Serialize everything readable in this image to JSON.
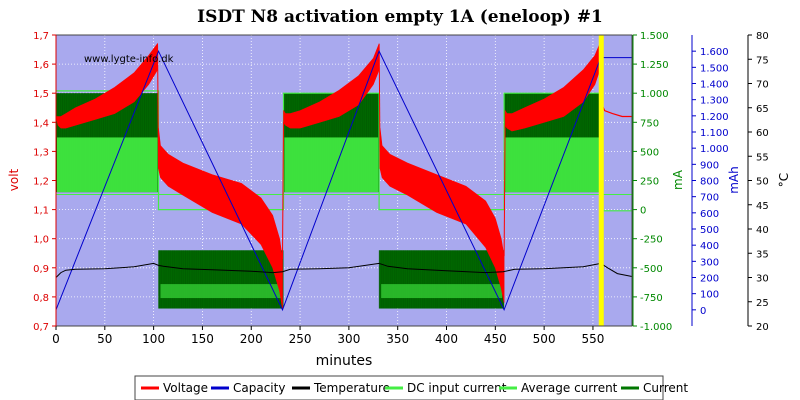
{
  "chart_data": {
    "type": "line",
    "title": "ISDT N8 activation empty 1A (eneloop) #1",
    "watermark": "www.lygte-info.dk",
    "xlabel": "minutes",
    "x_ticks": [
      0,
      50,
      100,
      150,
      200,
      250,
      300,
      350,
      400,
      450,
      500,
      550
    ],
    "xlim": [
      0,
      590
    ],
    "axes": {
      "volt": {
        "label": "volt",
        "range": [
          0.7,
          1.7
        ],
        "ticks": [
          "0,7",
          "0,8",
          "0,9",
          "1,0",
          "1,1",
          "1,2",
          "1,3",
          "1,4",
          "1,5",
          "1,6",
          "1,7"
        ],
        "color": "#dd0000"
      },
      "ma": {
        "label": "mA",
        "range": [
          -1000,
          1500
        ],
        "ticks": [
          "-1.000",
          "-750",
          "-500",
          "-250",
          "0",
          "250",
          "500",
          "750",
          "1.000",
          "1.250",
          "1.500"
        ],
        "color": "#008800"
      },
      "mah": {
        "label": "mAh",
        "range": [
          -100,
          1700
        ],
        "ticks": [
          "0",
          "100",
          "200",
          "300",
          "400",
          "500",
          "600",
          "700",
          "800",
          "900",
          "1.000",
          "1.100",
          "1.200",
          "1.300",
          "1.400",
          "1.500",
          "1.600"
        ],
        "color": "#0000cc"
      },
      "temp": {
        "label": "°C",
        "range": [
          20,
          80
        ],
        "ticks": [
          "20",
          "25",
          "30",
          "35",
          "40",
          "45",
          "50",
          "55",
          "60",
          "65",
          "70",
          "75",
          "80"
        ],
        "color": "#000000"
      }
    },
    "grid": true,
    "background_color": "#a9a9ee",
    "highlight": {
      "x": 558,
      "color": "#ffff00"
    },
    "series": [
      {
        "name": "Voltage",
        "color": "#ff0000",
        "axis": "volt",
        "kind": "band",
        "segments": [
          {
            "x": [
              0,
              2,
              5,
              10,
              20,
              40,
              60,
              80,
              95,
              104
            ],
            "y1": [
              1.42,
              1.39,
              1.38,
              1.38,
              1.39,
              1.41,
              1.43,
              1.47,
              1.53,
              1.58
            ],
            "y2": [
              1.42,
              1.42,
              1.42,
              1.43,
              1.45,
              1.48,
              1.52,
              1.57,
              1.63,
              1.67
            ]
          },
          {
            "x": [
              105,
              107,
              115,
              130,
              160,
              190,
              210,
              222,
              229,
              232
            ],
            "y1": [
              1.24,
              1.21,
              1.18,
              1.15,
              1.09,
              1.05,
              0.98,
              0.9,
              0.82,
              0.76
            ],
            "y2": [
              1.38,
              1.32,
              1.29,
              1.26,
              1.22,
              1.19,
              1.14,
              1.08,
              1.0,
              0.93
            ]
          },
          {
            "x": [
              233,
              235,
              240,
              250,
              270,
              290,
              310,
              325,
              331
            ],
            "y1": [
              1.4,
              1.39,
              1.38,
              1.38,
              1.4,
              1.42,
              1.46,
              1.53,
              1.58
            ],
            "y2": [
              1.44,
              1.43,
              1.43,
              1.44,
              1.47,
              1.51,
              1.56,
              1.62,
              1.67
            ]
          },
          {
            "x": [
              332,
              334,
              342,
              360,
              390,
              420,
              440,
              450,
              456,
              459
            ],
            "y1": [
              1.24,
              1.21,
              1.18,
              1.15,
              1.09,
              1.05,
              0.97,
              0.9,
              0.83,
              0.78
            ],
            "y2": [
              1.38,
              1.32,
              1.29,
              1.26,
              1.22,
              1.18,
              1.13,
              1.07,
              1.0,
              0.94
            ]
          },
          {
            "x": [
              460,
              462,
              467,
              480,
              500,
              520,
              540,
              552,
              557
            ],
            "y1": [
              1.39,
              1.38,
              1.37,
              1.38,
              1.4,
              1.42,
              1.47,
              1.53,
              1.58
            ],
            "y2": [
              1.44,
              1.43,
              1.43,
              1.45,
              1.48,
              1.52,
              1.58,
              1.63,
              1.67
            ]
          }
        ],
        "tail": {
          "x": [
            558,
            562,
            570,
            580,
            590
          ],
          "y": [
            1.47,
            1.44,
            1.43,
            1.42,
            1.42
          ]
        }
      },
      {
        "name": "Capacity",
        "color": "#0000cc",
        "axis": "mah",
        "x": [
          0,
          105,
          232,
          331,
          459,
          558,
          559,
          590
        ],
        "y": [
          0,
          1600,
          0,
          1600,
          0,
          1560,
          1560,
          1560
        ]
      },
      {
        "name": "Temperature",
        "color": "#000000",
        "axis": "temp",
        "x": [
          0,
          5,
          10,
          20,
          50,
          80,
          100,
          105,
          110,
          130,
          160,
          200,
          222,
          232,
          240,
          270,
          300,
          331,
          340,
          360,
          400,
          440,
          458,
          470,
          500,
          540,
          558,
          565,
          575,
          590
        ],
        "y": [
          30,
          31,
          31.5,
          31.7,
          31.8,
          32.2,
          32.9,
          32.5,
          32.3,
          31.8,
          31.6,
          31.3,
          31.0,
          31.2,
          31.7,
          31.8,
          32.0,
          32.9,
          32.3,
          31.8,
          31.4,
          31.0,
          31.2,
          31.7,
          31.8,
          32.2,
          32.9,
          32.0,
          30.8,
          30.2
        ]
      },
      {
        "name": "DC input current",
        "color": "#44ee44",
        "axis": "ma",
        "x": [
          0,
          590
        ],
        "y": [
          130,
          130
        ]
      },
      {
        "name": "Average current",
        "color": "#44ee44",
        "axis": "ma",
        "kind": "steps",
        "x": [
          0,
          105,
          105,
          233,
          233,
          331,
          331,
          459,
          459,
          558,
          560,
          560,
          590
        ],
        "y": [
          1020,
          1020,
          0,
          0,
          1000,
          1000,
          0,
          0,
          1000,
          1000,
          1000,
          -10,
          -10
        ]
      },
      {
        "name": "Current",
        "color": "#007700",
        "axis": "ma",
        "kind": "pulsed",
        "segments": [
          {
            "x": [
              0,
              105
            ],
            "low": 150,
            "high": 1000
          },
          {
            "x": [
              105,
              233
            ],
            "low": -850,
            "high": -350
          },
          {
            "x": [
              233,
              331
            ],
            "low": 150,
            "high": 1000
          },
          {
            "x": [
              331,
              459
            ],
            "low": -850,
            "high": -350
          },
          {
            "x": [
              459,
              558
            ],
            "low": 150,
            "high": 1000
          }
        ]
      }
    ],
    "legend": {
      "position": "bottom",
      "items": [
        {
          "label": "Voltage",
          "color": "#ff0000"
        },
        {
          "label": "Capacity",
          "color": "#0000cc"
        },
        {
          "label": "Temperature",
          "color": "#000000"
        },
        {
          "label": "DC input current",
          "color": "#44ee44"
        },
        {
          "label": "Average current",
          "color": "#44ee44"
        },
        {
          "label": "Current",
          "color": "#007700"
        }
      ]
    }
  }
}
